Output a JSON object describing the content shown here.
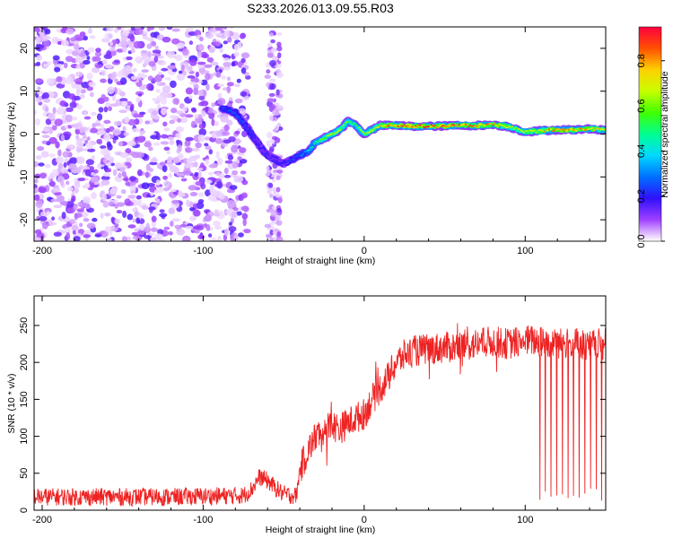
{
  "title": "S233.2026.013.09.55.R03",
  "chart_data": [
    {
      "type": "heatmap",
      "name": "spectrogram",
      "xlabel": "Height of straight line (km)",
      "ylabel": "Frequency (Hz)",
      "xlim": [
        -205,
        150
      ],
      "ylim": [
        -25,
        25
      ],
      "xticks": [
        -200,
        -100,
        0,
        100
      ],
      "xtick_labels": [
        "-200",
        "-100",
        "0",
        "100"
      ],
      "yticks": [
        -20,
        -10,
        0,
        10,
        20
      ],
      "ytick_labels": [
        "-20",
        "-10",
        "0",
        "10",
        "20"
      ],
      "colorbar": {
        "label": "Normalized spectral amplitude",
        "range": [
          0,
          0.95
        ],
        "ticks": [
          0.0,
          0.2,
          0.4,
          0.6,
          0.8
        ],
        "tick_labels": [
          "0.0",
          "0.2",
          "0.4",
          "0.6",
          "0.8"
        ]
      },
      "noise_region_x": [
        -205,
        -72
      ],
      "signal_track": {
        "x": [
          -88,
          -80,
          -72,
          -66,
          -60,
          -55,
          -50,
          -45,
          -40,
          -35,
          -30,
          -25,
          -20,
          -15,
          -10,
          -5,
          0,
          10,
          20,
          30,
          40,
          50,
          60,
          70,
          80,
          90,
          100,
          110,
          120,
          130,
          140,
          150
        ],
        "frequency": [
          6,
          5,
          1,
          -2,
          -5,
          -6,
          -7,
          -6,
          -5,
          -4,
          -2,
          -1,
          0,
          1,
          3,
          2,
          0,
          2,
          2,
          1.8,
          1.8,
          1.9,
          2,
          2,
          2.2,
          1.7,
          0.5,
          0.8,
          1.0,
          1.0,
          1.2,
          1.0
        ],
        "amplitude": [
          0.25,
          0.3,
          0.25,
          0.2,
          0.2,
          0.2,
          0.2,
          0.25,
          0.3,
          0.4,
          0.55,
          0.65,
          0.7,
          0.7,
          0.6,
          0.6,
          0.65,
          0.8,
          0.9,
          0.9,
          0.9,
          0.9,
          0.88,
          0.85,
          0.85,
          0.75,
          0.7,
          0.8,
          0.85,
          0.85,
          0.8,
          0.75
        ]
      }
    },
    {
      "type": "line",
      "name": "snr",
      "xlabel": "Height of straight line (km)",
      "ylabel": "SNR (10 * v/v)",
      "xlim": [
        -205,
        150
      ],
      "ylim": [
        0,
        290
      ],
      "xticks": [
        -200,
        -100,
        0,
        100
      ],
      "xtick_labels": [
        "-200",
        "-100",
        "0",
        "100"
      ],
      "yticks": [
        0,
        50,
        100,
        150,
        200,
        250
      ],
      "ytick_labels": [
        "0",
        "50",
        "100",
        "150",
        "200",
        "250"
      ],
      "series": [
        {
          "name": "SNR",
          "color": "#ee2222",
          "x": [
            -205,
            -120,
            -75,
            -70,
            -65,
            -60,
            -55,
            -50,
            -45,
            -42,
            -40,
            -35,
            -30,
            -25,
            -20,
            -15,
            -10,
            -5,
            0,
            5,
            10,
            15,
            20,
            25,
            30,
            40,
            50,
            60,
            70,
            80,
            90,
            100,
            110,
            120,
            130,
            140,
            150
          ],
          "mean": [
            18,
            18,
            20,
            28,
            45,
            40,
            30,
            22,
            20,
            20,
            55,
            80,
            100,
            110,
            115,
            110,
            118,
            125,
            130,
            150,
            165,
            180,
            200,
            210,
            215,
            218,
            220,
            222,
            225,
            228,
            225,
            230,
            228,
            226,
            225,
            224,
            225
          ],
          "spread": 12,
          "dropouts_x_range": [
            108,
            150
          ],
          "dropout_count": 12
        }
      ]
    }
  ]
}
